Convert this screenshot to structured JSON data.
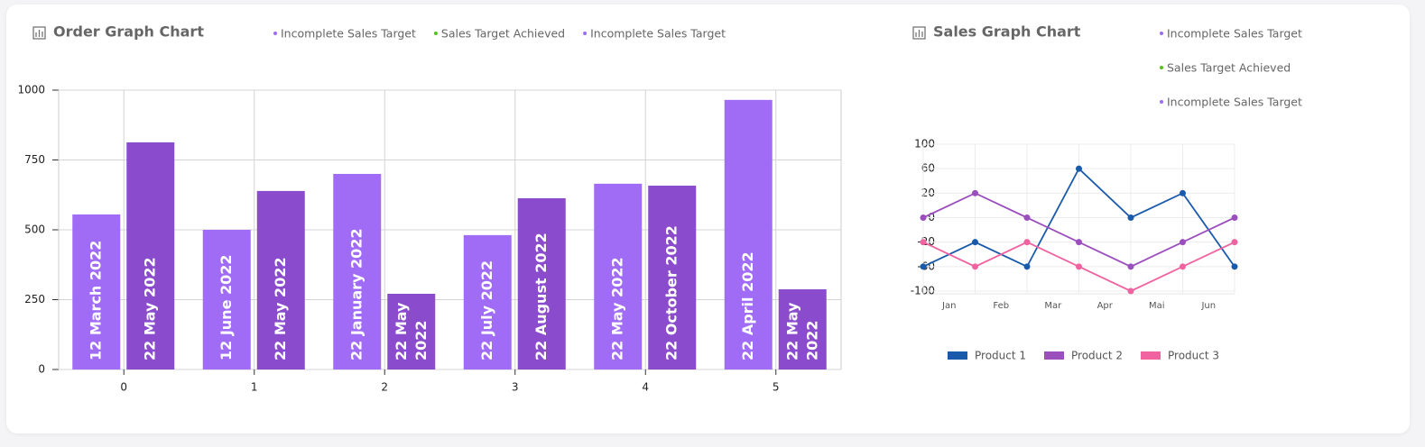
{
  "chart_data": [
    {
      "type": "bar",
      "title": "Order Graph Chart",
      "legend": [
        {
          "name": "Incomplete Sales Target",
          "color": "#9d6cf5"
        },
        {
          "name": "Sales Target Achieved",
          "color": "#52c41a"
        },
        {
          "name": "Incomplete Sales Target",
          "color": "#9d6cf5"
        }
      ],
      "categories": [
        "0",
        "1",
        "2",
        "3",
        "4",
        "5"
      ],
      "series": [
        {
          "color": "#a06cf6",
          "values": [
            555,
            500,
            700,
            481,
            665,
            965
          ],
          "labels": [
            "12 March 2022",
            "12 June 2022",
            "22 January 2022",
            "22 July 2022",
            "22 May 2022",
            "22  April 2022"
          ]
        },
        {
          "color": "#8a4bcc",
          "values": [
            813,
            639,
            271,
            613,
            658,
            287
          ],
          "labels": [
            "22 May 2022",
            "22 May 2022",
            "22 May 2022",
            "22 August  2022",
            "22 October 2022",
            "22 May 2022"
          ]
        }
      ],
      "ylim": [
        0,
        1000
      ],
      "yticks": [
        0,
        250,
        500,
        750,
        1000
      ],
      "grid": true
    },
    {
      "type": "line",
      "title": "Sales Graph Chart",
      "legend": [
        {
          "name": "Incomplete Sales Target",
          "color": "#9d6cf5"
        },
        {
          "name": "Sales Target Achieved",
          "color": "#52c41a"
        },
        {
          "name": "Incomplete Sales Target",
          "color": "#9d6cf5"
        }
      ],
      "x": [
        0,
        1,
        2,
        3,
        4,
        5,
        6
      ],
      "xlim": [
        0,
        6
      ],
      "xticks": [
        {
          "value": 0.5,
          "label": "Jan"
        },
        {
          "value": 1.5,
          "label": "Feb"
        },
        {
          "value": 2.5,
          "label": "Mar"
        },
        {
          "value": 3.5,
          "label": "Apr"
        },
        {
          "value": 4.5,
          "label": "Mai"
        },
        {
          "value": 5.5,
          "label": "Jun"
        }
      ],
      "ylim": [
        -100,
        100
      ],
      "yticks": [
        100,
        60,
        20,
        0,
        -20,
        -60,
        -100
      ],
      "series": [
        {
          "name": "Product 1",
          "color": "#1a5aab",
          "values": [
            -60,
            -20,
            -60,
            60,
            0,
            20,
            -60
          ]
        },
        {
          "name": "Product 2",
          "color": "#9b4fbd",
          "values": [
            0,
            20,
            0,
            -20,
            -60,
            -20,
            0
          ]
        },
        {
          "name": "Product 3",
          "color": "#f062a0",
          "values": [
            -20,
            -60,
            -20,
            -60,
            -100,
            -60,
            -20
          ]
        }
      ],
      "grid": true
    }
  ]
}
